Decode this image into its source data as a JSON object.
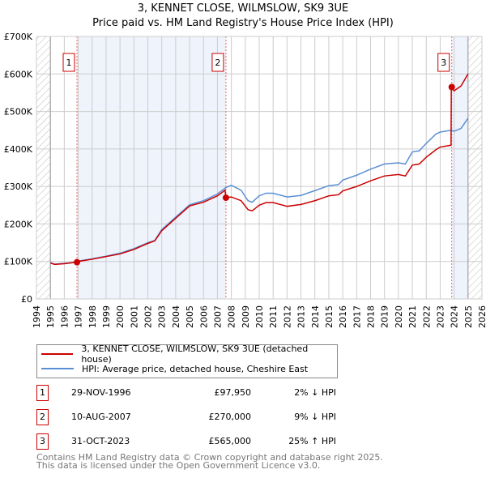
{
  "chart_data": {
    "type": "line",
    "title": "3, KENNET CLOSE, WILMSLOW, SK9 3UE",
    "subtitle": "Price paid vs. HM Land Registry's House Price Index (HPI)",
    "xlim": [
      1994,
      2026
    ],
    "ylim": [
      0,
      700000
    ],
    "x_ticks": [
      "1994",
      "1995",
      "1996",
      "1997",
      "1998",
      "1999",
      "2000",
      "2001",
      "2002",
      "2003",
      "2004",
      "2005",
      "2006",
      "2007",
      "2008",
      "2009",
      "2010",
      "2011",
      "2012",
      "2013",
      "2014",
      "2015",
      "2016",
      "2017",
      "2018",
      "2019",
      "2020",
      "2021",
      "2022",
      "2023",
      "2024",
      "2025",
      "2026"
    ],
    "y_ticks": [
      {
        "v": 0,
        "l": "£0"
      },
      {
        "v": 100000,
        "l": "£100K"
      },
      {
        "v": 200000,
        "l": "£200K"
      },
      {
        "v": 300000,
        "l": "£300K"
      },
      {
        "v": 400000,
        "l": "£400K"
      },
      {
        "v": 500000,
        "l": "£500K"
      },
      {
        "v": 600000,
        "l": "£600K"
      },
      {
        "v": 700000,
        "l": "£700K"
      }
    ],
    "grid": true,
    "data_range": [
      1995,
      2025
    ],
    "series": [
      {
        "name": "3, KENNET CLOSE, WILMSLOW, SK9 3UE (detached house)",
        "color": "#cc0000",
        "x": [
          1995,
          1995.3,
          1996,
          1996.9,
          1997,
          1998,
          1999,
          2000,
          2001,
          2002,
          2002.5,
          2003,
          2004,
          2005,
          2006,
          2007,
          2007.55,
          2007.6,
          2008,
          2008.7,
          2009.2,
          2009.5,
          2010,
          2010.5,
          2011,
          2012,
          2013,
          2014,
          2015,
          2015.7,
          2016,
          2017,
          2018,
          2019,
          2020,
          2020.5,
          2021,
          2021.5,
          2022,
          2022.7,
          2023,
          2023.78,
          2023.8,
          2024,
          2024.5,
          2025
        ],
        "y": [
          96000,
          92000,
          94000,
          97950,
          100000,
          106000,
          113000,
          120000,
          132000,
          148000,
          155000,
          182000,
          215000,
          248000,
          258000,
          275000,
          290000,
          270000,
          272000,
          262000,
          238000,
          235000,
          250000,
          257000,
          257000,
          247000,
          252000,
          262000,
          275000,
          278000,
          288000,
          300000,
          315000,
          328000,
          332000,
          328000,
          357000,
          360000,
          378000,
          398000,
          405000,
          410000,
          565000,
          555000,
          568000,
          600000
        ]
      },
      {
        "name": "HPI: Average price, detached house, Cheshire East",
        "color": "#5b8fd4",
        "x": [
          1995,
          1995.3,
          1996,
          1996.9,
          1997,
          1998,
          1999,
          2000,
          2001,
          2002,
          2002.5,
          2003,
          2004,
          2005,
          2006,
          2007,
          2007.6,
          2008,
          2008.7,
          2009.2,
          2009.5,
          2010,
          2010.5,
          2011,
          2012,
          2013,
          2014,
          2015,
          2015.7,
          2016,
          2017,
          2018,
          2019,
          2020,
          2020.5,
          2021,
          2021.5,
          2022,
          2022.7,
          2023,
          2023.8,
          2024,
          2024.5,
          2025
        ],
        "y": [
          97000,
          93000,
          95000,
          98000,
          101000,
          107000,
          114000,
          122000,
          134000,
          150000,
          156000,
          185000,
          218000,
          251000,
          262000,
          280000,
          297000,
          303000,
          290000,
          262000,
          258000,
          275000,
          282000,
          282000,
          272000,
          276000,
          289000,
          302000,
          305000,
          317000,
          330000,
          346000,
          360000,
          363000,
          360000,
          392000,
          395000,
          415000,
          440000,
          445000,
          450000,
          447000,
          455000,
          482000
        ]
      }
    ],
    "sales": [
      {
        "n": "1",
        "x": 1996.91,
        "y": 97950
      },
      {
        "n": "2",
        "x": 2007.61,
        "y": 270000
      },
      {
        "n": "3",
        "x": 2023.83,
        "y": 565000
      }
    ],
    "colors": {
      "red": "#cc0000",
      "blue": "#5b8fd4",
      "band": "#eef3fc"
    }
  },
  "legend": {
    "property": "3, KENNET CLOSE, WILMSLOW, SK9 3UE (detached house)",
    "hpi": "HPI: Average price, detached house, Cheshire East"
  },
  "transactions": [
    {
      "n": "1",
      "date": "29-NOV-1996",
      "price": "£97,950",
      "hpi": "2% ↓ HPI"
    },
    {
      "n": "2",
      "date": "10-AUG-2007",
      "price": "£270,000",
      "hpi": "9% ↓ HPI"
    },
    {
      "n": "3",
      "date": "31-OCT-2023",
      "price": "£565,000",
      "hpi": "25% ↑ HPI"
    }
  ],
  "footer": {
    "line1": "Contains HM Land Registry data © Crown copyright and database right 2025.",
    "line2": "This data is licensed under the Open Government Licence v3.0."
  }
}
